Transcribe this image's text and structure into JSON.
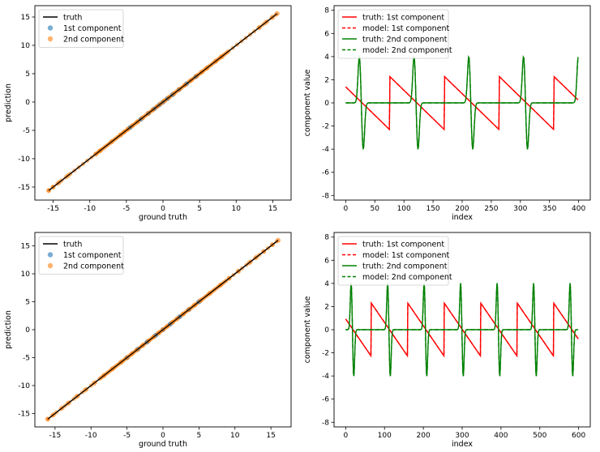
{
  "chart_data": [
    {
      "type": "scatter",
      "title": "",
      "xlabel": "ground truth",
      "ylabel": "prediction",
      "xlim": [
        -17.5,
        17.5
      ],
      "ylim": [
        -17.3,
        17.0
      ],
      "xticks": [
        -15,
        -10,
        -5,
        0,
        5,
        10,
        15
      ],
      "yticks": [
        -15,
        -10,
        -5,
        0,
        5,
        10,
        15
      ],
      "legend": [
        "truth",
        "1st  component",
        "2nd component"
      ],
      "legend_location": "upper-left",
      "range": [
        -15.6,
        15.6
      ],
      "series": [
        {
          "name": "truth",
          "kind": "line",
          "color": "#000000",
          "x": [
            -15.6,
            15.6
          ],
          "y": [
            -15.6,
            15.6
          ]
        },
        {
          "name": "1st  component",
          "kind": "scatter",
          "color": "#1f77b4",
          "x": [
            -4.5,
            -3.0,
            -2.0,
            -1.2,
            -0.5,
            0.0,
            0.6,
            1.3,
            2.2,
            3.2,
            4.5
          ],
          "y": [
            -4.5,
            -3.0,
            -2.0,
            -1.2,
            -0.5,
            0.0,
            0.6,
            1.3,
            2.2,
            3.2,
            4.5
          ]
        },
        {
          "name": "2nd component",
          "kind": "scatter",
          "color": "#ff7f0e",
          "x": [
            -15.6,
            -15.0,
            -14.2,
            -13.0,
            -9.2,
            -8.6,
            -7.0,
            -5.8,
            -5.3,
            -4.8,
            -4.2,
            -3.5,
            -2.8,
            -2.0,
            -1.4,
            -0.8,
            -0.3,
            0.2,
            0.8,
            1.5,
            2.2,
            3.0,
            3.8,
            4.6,
            5.3,
            6.0,
            7.2,
            8.0,
            13.2,
            14.0,
            15.0,
            15.6
          ],
          "y": [
            -15.6,
            -15.0,
            -14.2,
            -13.0,
            -9.2,
            -8.6,
            -7.0,
            -5.8,
            -5.3,
            -4.8,
            -4.2,
            -3.5,
            -2.8,
            -2.0,
            -1.4,
            -0.8,
            -0.3,
            0.2,
            0.8,
            1.5,
            2.2,
            3.0,
            3.8,
            4.6,
            5.3,
            6.0,
            7.2,
            8.0,
            13.2,
            14.0,
            15.0,
            15.6
          ]
        }
      ]
    },
    {
      "type": "line",
      "title": "",
      "xlabel": "index",
      "ylabel": "component value",
      "xlim": [
        -20,
        420
      ],
      "ylim": [
        -8.4,
        8.4
      ],
      "xticks": [
        0,
        50,
        100,
        150,
        200,
        250,
        300,
        350,
        400
      ],
      "yticks": [
        -8,
        -6,
        -4,
        -2,
        0,
        2,
        4,
        6,
        8
      ],
      "legend": [
        "truth: 1st  component",
        "model: 1st  component",
        "truth: 2nd component",
        "model: 2nd  component"
      ],
      "legend_location": "upper-left",
      "n_points": 400,
      "period": 94,
      "phase": 0.2,
      "amplitude_1st": 2.3,
      "amplitude_2nd": 4.1,
      "series": [
        {
          "name": "truth: 1st  component",
          "color": "#ff0000",
          "dash": "solid",
          "component": 1
        },
        {
          "name": "model: 1st  component",
          "color": "#ff0000",
          "dash": "dashed",
          "component": 1
        },
        {
          "name": "truth: 2nd component",
          "color": "#008000",
          "dash": "solid",
          "component": 2
        },
        {
          "name": "model: 2nd  component",
          "color": "#008000",
          "dash": "dashed",
          "component": 2
        }
      ]
    },
    {
      "type": "scatter",
      "title": "",
      "xlabel": "ground truth",
      "ylabel": "prediction",
      "xlim": [
        -17.8,
        17.8
      ],
      "ylim": [
        -17.4,
        17.4
      ],
      "xticks": [
        -15,
        -10,
        -5,
        0,
        5,
        10,
        15
      ],
      "yticks": [
        -15,
        -10,
        -5,
        0,
        5,
        10,
        15
      ],
      "legend": [
        "truth",
        "1st  component",
        "2nd component"
      ],
      "legend_location": "upper-left",
      "range": [
        -16.0,
        16.0
      ],
      "series": [
        {
          "name": "truth",
          "kind": "line",
          "color": "#000000",
          "x": [
            -16.0,
            16.0
          ],
          "y": [
            -16.0,
            16.0
          ]
        },
        {
          "name": "1st  component",
          "kind": "scatter",
          "color": "#1f77b4",
          "x": [
            -5.0,
            -3.5,
            -2.2,
            -1.0,
            0.0,
            1.0,
            2.3,
            3.6,
            5.0
          ],
          "y": [
            -5.0,
            -3.5,
            -2.2,
            -1.0,
            0.0,
            1.0,
            2.3,
            3.6,
            5.0
          ]
        },
        {
          "name": "2nd component",
          "kind": "scatter",
          "color": "#ff7f0e",
          "x": [
            -16.0,
            -15.2,
            -14.0,
            -13.2,
            -12.0,
            -10.8,
            -9.6,
            -8.2,
            -7.0,
            -5.8,
            -5.0,
            -4.3,
            -3.6,
            -2.8,
            -2.0,
            -1.3,
            -0.6,
            0.0,
            0.6,
            1.3,
            2.0,
            2.8,
            3.6,
            4.4,
            5.2,
            6.5,
            8.0,
            9.2,
            10.5,
            12.0,
            13.0,
            14.0,
            15.2,
            16.0
          ],
          "y": [
            -16.0,
            -15.2,
            -14.0,
            -13.2,
            -12.0,
            -10.8,
            -9.6,
            -8.2,
            -7.0,
            -5.8,
            -5.0,
            -4.3,
            -3.6,
            -2.8,
            -2.0,
            -1.3,
            -0.6,
            0.0,
            0.6,
            1.3,
            2.0,
            2.8,
            3.6,
            4.4,
            5.2,
            6.5,
            8.0,
            9.2,
            10.5,
            12.0,
            13.0,
            14.0,
            15.2,
            16.0
          ]
        }
      ]
    },
    {
      "type": "line",
      "title": "",
      "xlabel": "index",
      "ylabel": "component value",
      "xlim": [
        -30,
        630
      ],
      "ylim": [
        -8.4,
        8.4
      ],
      "xticks": [
        0,
        100,
        200,
        300,
        400,
        500,
        600
      ],
      "yticks": [
        -8,
        -6,
        -4,
        -2,
        0,
        2,
        4,
        6,
        8
      ],
      "legend": [
        "truth: 1st  component",
        "model: 1st  component",
        "truth: 2nd component",
        "model: 2nd  component"
      ],
      "legend_location": "upper-left",
      "n_points": 600,
      "period": 94,
      "phase": 0.3,
      "amplitude_1st": 2.3,
      "amplitude_2nd": 4.1,
      "series": [
        {
          "name": "truth: 1st  component",
          "color": "#ff0000",
          "dash": "solid",
          "component": 1
        },
        {
          "name": "model: 1st  component",
          "color": "#ff0000",
          "dash": "dashed",
          "component": 1
        },
        {
          "name": "truth: 2nd component",
          "color": "#008000",
          "dash": "solid",
          "component": 2
        },
        {
          "name": "model: 2nd  component",
          "color": "#008000",
          "dash": "dashed",
          "component": 2
        }
      ]
    }
  ]
}
